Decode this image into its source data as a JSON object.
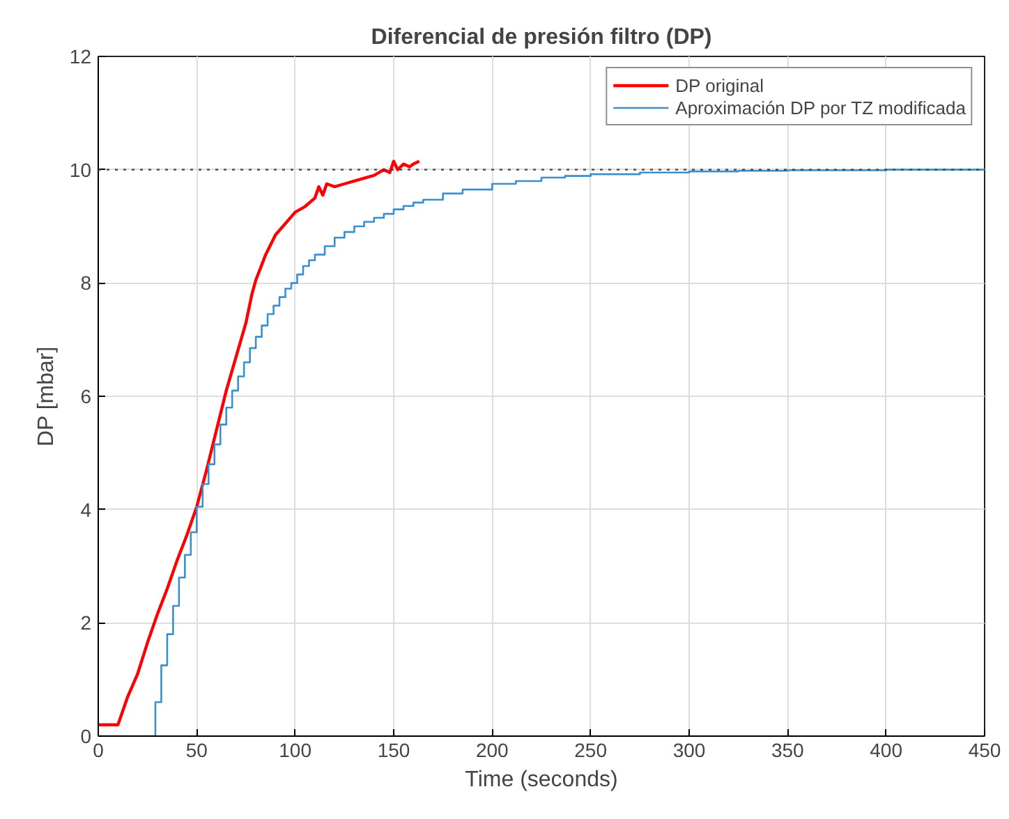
{
  "chart_data": {
    "type": "line",
    "title": "Diferencial de presión filtro (DP)",
    "xlabel": "Time (seconds)",
    "ylabel": "DP [mbar]",
    "xlim": [
      0,
      450
    ],
    "xticks": [
      0,
      50,
      100,
      150,
      200,
      250,
      300,
      350,
      400,
      450
    ],
    "ylim": [
      0,
      12
    ],
    "yticks": [
      0,
      2,
      4,
      6,
      8,
      10,
      12
    ],
    "grid": true,
    "legend": "top right",
    "ref_lines": [
      {
        "axis": "y",
        "value": 10,
        "color": "#404040",
        "line_style": "dotted"
      }
    ],
    "series": [
      {
        "name": "DP original",
        "color": "#ff0000",
        "x": [
          0,
          10,
          12,
          15,
          20,
          25,
          30,
          35,
          40,
          45,
          50,
          55,
          60,
          65,
          70,
          75,
          78,
          80,
          85,
          90,
          95,
          100,
          105,
          110,
          112,
          114,
          116,
          120,
          125,
          130,
          135,
          140,
          145,
          148,
          150,
          152,
          155,
          158,
          160,
          163
        ],
        "values": [
          0.2,
          0.2,
          0.4,
          0.7,
          1.1,
          1.65,
          2.15,
          2.6,
          3.1,
          3.55,
          4.05,
          4.7,
          5.4,
          6.1,
          6.7,
          7.3,
          7.8,
          8.05,
          8.5,
          8.85,
          9.05,
          9.25,
          9.35,
          9.5,
          9.7,
          9.55,
          9.75,
          9.7,
          9.75,
          9.8,
          9.85,
          9.9,
          10.0,
          9.95,
          10.15,
          10.0,
          10.1,
          10.05,
          10.1,
          10.15
        ]
      },
      {
        "name": "Aproximación DP por TZ modificada",
        "type": "step",
        "color": "#3a8fd0",
        "x": [
          0,
          29,
          32,
          35,
          38,
          41,
          44,
          47,
          50,
          53,
          56,
          59,
          62,
          65,
          68,
          71,
          74,
          77,
          80,
          83,
          86,
          89,
          92,
          95,
          98,
          101,
          104,
          107,
          110,
          115,
          120,
          125,
          130,
          135,
          140,
          145,
          150,
          155,
          160,
          165,
          175,
          185,
          200,
          212,
          225,
          237,
          250,
          275,
          300,
          325,
          350,
          400,
          450
        ],
        "values": [
          0,
          0.6,
          1.25,
          1.8,
          2.3,
          2.8,
          3.2,
          3.6,
          4.05,
          4.45,
          4.8,
          5.15,
          5.5,
          5.8,
          6.1,
          6.35,
          6.6,
          6.85,
          7.05,
          7.25,
          7.45,
          7.6,
          7.75,
          7.9,
          8.0,
          8.15,
          8.3,
          8.4,
          8.5,
          8.65,
          8.8,
          8.9,
          9.0,
          9.08,
          9.15,
          9.22,
          9.3,
          9.36,
          9.42,
          9.47,
          9.58,
          9.65,
          9.75,
          9.8,
          9.86,
          9.89,
          9.92,
          9.95,
          9.97,
          9.98,
          9.99,
          10.0,
          10.0
        ]
      }
    ]
  }
}
